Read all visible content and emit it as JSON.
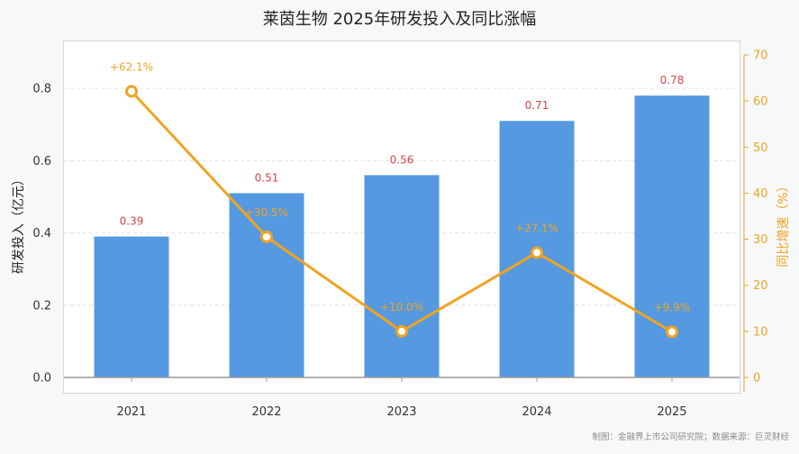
{
  "chart_data": {
    "type": "bar",
    "title": "莱茵生物 2025年研发投入及同比涨幅",
    "categories": [
      "2021",
      "2022",
      "2023",
      "2024",
      "2025"
    ],
    "series": [
      {
        "values": [
          0.39,
          0.51,
          0.56,
          0.71,
          0.78
        ],
        "color": "#5599e0"
      },
      {
        "values": [
          62.1,
          30.5,
          10.0,
          27.1,
          9.9
        ],
        "color": "#f0a323"
      }
    ],
    "bar_labels": [
      "0.39",
      "0.51",
      "0.56",
      "0.71",
      "0.78"
    ],
    "growth_labels": [
      "+62.1%",
      "+30.5%",
      "+10.0%",
      "+27.1%",
      "+9.9%"
    ],
    "ylabel": "研发投入（亿元）",
    "y2label": "同比增速（%）",
    "ylim": [
      0,
      0.93
    ],
    "y2lim": [
      0,
      70
    ],
    "yticks": [
      "0.0",
      "0.2",
      "0.4",
      "0.6",
      "0.8"
    ],
    "y2ticks": [
      "0",
      "10",
      "20",
      "30",
      "40",
      "50",
      "60",
      "70"
    ],
    "grid": true,
    "source": "制图：金融界上市公司研究院；数据来源：巨灵财经"
  }
}
